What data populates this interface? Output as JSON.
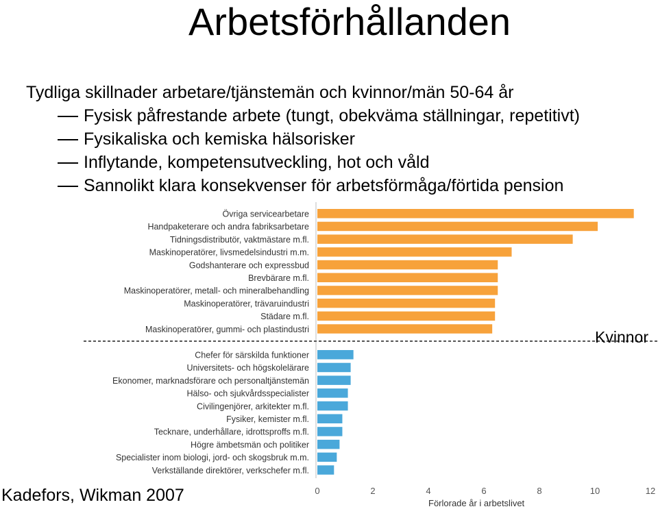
{
  "title": "Arbetsförhållanden",
  "lead": "Tydliga skillnader arbetare/tjänstemän och kvinnor/män  50-64 år",
  "bullets": [
    "Fysisk påfrestande arbete (tungt, obekväma ställningar, repetitivt)",
    "Fysikaliska och kemiska hälsorisker",
    "Inflytande, kompetensutveckling, hot och våld",
    "Sannolikt klara konsekvenser för arbetsförmåga/förtida pension"
  ],
  "source": "Kadefors, Wikman 2007",
  "chart_data": {
    "type": "bar",
    "orientation": "horizontal",
    "xlabel": "Förlorade år i arbetslivet",
    "xlim": [
      0,
      12
    ],
    "xticks": [
      "0",
      "2",
      "4",
      "6",
      "8",
      "10",
      "12"
    ],
    "grid": false,
    "legend": "none",
    "annotation": "Kvinnor",
    "groups": [
      {
        "color": "#f7a23b",
        "categories": [
          "Övriga servicearbetare",
          "Handpaketerare och andra fabriksarbetare",
          "Tidningsdistributör, vaktmästare m.fl.",
          "Maskinoperatörer, livsmedelsindustri m.m.",
          "Godshanterare och expressbud",
          "Brevbärare m.fl.",
          "Maskinoperatörer, metall- och mineralbehandling",
          "Maskinoperatörer, trävaruindustri",
          "Städare m.fl.",
          "Maskinoperatörer, gummi- och plastindustri"
        ],
        "values": [
          11.4,
          10.1,
          9.2,
          7.0,
          6.5,
          6.5,
          6.5,
          6.4,
          6.4,
          6.3
        ]
      },
      {
        "color": "#4aa8da",
        "categories": [
          "Chefer för särskilda funktioner",
          "Universitets- och högskolelärare",
          "Ekonomer, marknadsförare och personaltjänstemän",
          "Hälso- och sjukvårdsspecialister",
          "Civilingenjörer, arkitekter m.fl.",
          "Fysiker, kemister m.fl.",
          "Tecknare, underhållare, idrottsproffs m.fl.",
          "Högre ämbetsmän och politiker",
          "Specialister inom biologi, jord- och skogsbruk m.m.",
          "Verkställande direktörer, verkschefer m.fl."
        ],
        "values": [
          1.3,
          1.2,
          1.2,
          1.1,
          1.1,
          0.9,
          0.9,
          0.8,
          0.7,
          0.6
        ]
      }
    ]
  }
}
